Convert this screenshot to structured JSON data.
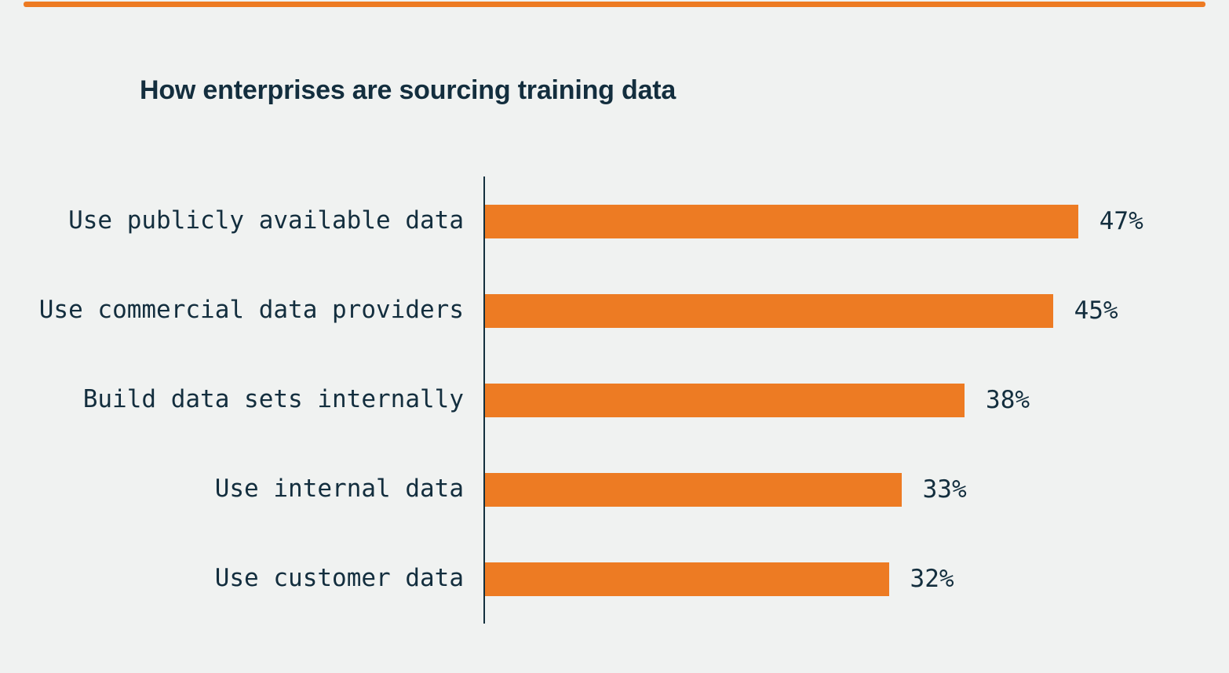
{
  "page": {
    "background_color": "#f0f2f1",
    "accent_rule_color": "#ed7b23"
  },
  "chart_data": {
    "type": "bar",
    "orientation": "horizontal",
    "title": "How enterprises are sourcing training data",
    "categories": [
      "Use publicly available data",
      "Use commercial data providers",
      "Build data sets internally",
      "Use internal data",
      "Use customer data"
    ],
    "values": [
      47,
      45,
      38,
      33,
      32
    ],
    "value_labels": [
      "47%",
      "45%",
      "38%",
      "33%",
      "32%"
    ],
    "xlabel": "",
    "ylabel": "",
    "xlim": [
      0,
      50
    ],
    "grid": false,
    "legend": false,
    "bar_color": "#ed7b23",
    "axis_color": "#14303e",
    "text_color": "#132e3e"
  }
}
